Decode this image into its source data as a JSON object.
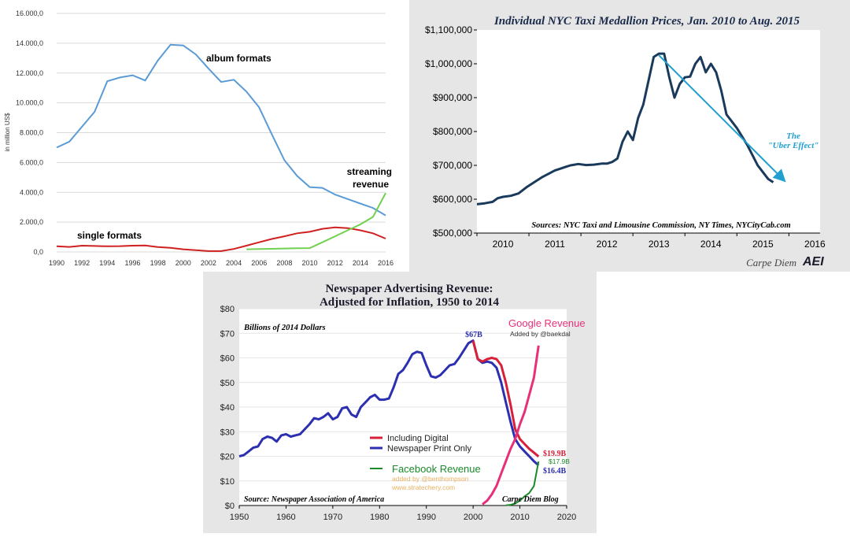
{
  "chart_data": [
    {
      "type": "line",
      "ylabel": "in million US$",
      "ylim": [
        0,
        16000
      ],
      "yticks": [
        "0,0",
        "2.000,0",
        "4.000,0",
        "6.000,0",
        "8.000,0",
        "10.000,0",
        "12.000,0",
        "14.000,0",
        "16.000,0"
      ],
      "xlim": [
        1990,
        2016
      ],
      "xticks": [
        "1990",
        "1992",
        "1994",
        "1996",
        "1998",
        "2000",
        "2002",
        "2004",
        "2006",
        "2008",
        "2010",
        "2012",
        "2014",
        "2016"
      ],
      "annotations": {
        "album": "album formats",
        "single": "single formats",
        "streaming1": "streaming",
        "streaming2": "revenue"
      },
      "series": [
        {
          "name": "album formats",
          "color": "#5b9bd5",
          "x": [
            1990,
            1991,
            1992,
            1993,
            1994,
            1995,
            1996,
            1997,
            1998,
            1999,
            2000,
            2001,
            2002,
            2003,
            2004,
            2005,
            2006,
            2007,
            2008,
            2009,
            2010,
            2011,
            2012,
            2013,
            2014,
            2015,
            2016
          ],
          "values": [
            7000,
            7400,
            8400,
            9400,
            11450,
            11700,
            11850,
            11500,
            12850,
            13900,
            13850,
            13250,
            12300,
            11400,
            11550,
            10750,
            9700,
            7900,
            6150,
            5100,
            4350,
            4300,
            3850,
            3550,
            3250,
            2950,
            2450
          ]
        },
        {
          "name": "single formats",
          "color": "#d02020",
          "x": [
            1990,
            1991,
            1992,
            1993,
            1994,
            1995,
            1996,
            1997,
            1998,
            1999,
            2000,
            2001,
            2002,
            2003,
            2004,
            2005,
            2006,
            2007,
            2008,
            2009,
            2010,
            2011,
            2012,
            2013,
            2014,
            2015,
            2016
          ],
          "values": [
            380,
            340,
            420,
            400,
            380,
            390,
            420,
            440,
            330,
            280,
            180,
            120,
            60,
            60,
            200,
            420,
            650,
            870,
            1050,
            1250,
            1350,
            1550,
            1650,
            1600,
            1450,
            1250,
            900
          ]
        },
        {
          "name": "streaming revenue",
          "color": "#70d050",
          "x": [
            2005,
            2006,
            2007,
            2008,
            2009,
            2010,
            2011,
            2012,
            2013,
            2014,
            2015,
            2016
          ],
          "values": [
            180,
            200,
            210,
            230,
            250,
            260,
            650,
            1050,
            1450,
            1850,
            2350,
            3950
          ]
        }
      ]
    },
    {
      "type": "line",
      "title": "Individual NYC Taxi Medallion Prices, Jan. 2010 to Aug. 2015",
      "ylim": [
        500000,
        1100000
      ],
      "yticks": [
        "$500,000",
        "$600,000",
        "$700,000",
        "$800,000",
        "$900,000",
        "$1,000,000",
        "$1,100,000"
      ],
      "xlim": [
        2009.5,
        2016.1
      ],
      "xticks": [
        "2010",
        "2011",
        "2012",
        "2013",
        "2014",
        "2015",
        "2016"
      ],
      "source": "Sources: NYC Taxi and Limousine Commission, NY Times, NYCityCab.com",
      "trend_label1": "The",
      "trend_label2": "\"Uber Effect\"",
      "trend": {
        "x": [
          2013.0,
          2015.4
        ],
        "values": [
          1025000,
          657000
        ]
      },
      "brand": "Carpe Diem",
      "logo": "AEI",
      "series": [
        {
          "name": "medallion price",
          "color": "#1a3a5c",
          "x": [
            2009.5,
            2009.65,
            2009.8,
            2009.9,
            2010.0,
            2010.15,
            2010.3,
            2010.45,
            2010.6,
            2010.75,
            2010.9,
            2011.0,
            2011.1,
            2011.2,
            2011.3,
            2011.45,
            2011.6,
            2011.75,
            2011.9,
            2012.0,
            2012.1,
            2012.2,
            2012.3,
            2012.4,
            2012.5,
            2012.6,
            2012.7,
            2012.8,
            2012.9,
            2013.0,
            2013.1,
            2013.2,
            2013.3,
            2013.4,
            2013.5,
            2013.6,
            2013.7,
            2013.8,
            2013.9,
            2014.0,
            2014.1,
            2014.2,
            2014.3,
            2014.4,
            2014.5,
            2014.6,
            2014.7,
            2014.8,
            2014.9,
            2015.0,
            2015.1,
            2015.2
          ],
          "values": [
            585000,
            588000,
            592000,
            603000,
            607000,
            610000,
            617000,
            635000,
            650000,
            665000,
            677000,
            685000,
            690000,
            695000,
            700000,
            704000,
            701000,
            702000,
            705000,
            705000,
            710000,
            720000,
            770000,
            800000,
            775000,
            840000,
            880000,
            950000,
            1020000,
            1030000,
            1030000,
            960000,
            900000,
            940000,
            960000,
            962000,
            1000000,
            1020000,
            975000,
            1000000,
            975000,
            920000,
            850000,
            830000,
            810000,
            785000,
            760000,
            730000,
            700000,
            680000,
            660000,
            650000
          ]
        }
      ]
    },
    {
      "type": "line",
      "title1": "Newspaper Advertising Revenue:",
      "title2": "Adjusted for Inflation, 1950 to 2014",
      "units": "Billions of 2014 Dollars",
      "ylim": [
        0,
        80
      ],
      "yticks": [
        "$0",
        "$10",
        "$20",
        "$30",
        "$40",
        "$50",
        "$60",
        "$70",
        "$80"
      ],
      "xlim": [
        1950,
        2020
      ],
      "xticks": [
        "1950",
        "1960",
        "1970",
        "1980",
        "1990",
        "2000",
        "2010",
        "2020"
      ],
      "source": "Source: Newspaper Association of America",
      "blog": "Carpe Diem Blog",
      "labels": {
        "peak": "$67B",
        "digital_end": "$19.9B",
        "print_end": "$16.4B",
        "facebook_end": "$17.9B"
      },
      "google_label": "Google Revenue",
      "google_credit": "Added by @baekdal",
      "facebook_label": "Facebook Revenue",
      "facebook_credit1": "added by @benthompson",
      "facebook_credit2": "www.stratechery.com",
      "legend": [
        "Including Digital",
        "Newspaper Print Only"
      ],
      "series": [
        {
          "name": "Newspaper Print Only",
          "color": "#2b2fb0",
          "x": [
            1950,
            1951,
            1952,
            1953,
            1954,
            1955,
            1956,
            1957,
            1958,
            1959,
            1960,
            1961,
            1962,
            1963,
            1964,
            1965,
            1966,
            1967,
            1968,
            1969,
            1970,
            1971,
            1972,
            1973,
            1974,
            1975,
            1976,
            1977,
            1978,
            1979,
            1980,
            1981,
            1982,
            1983,
            1984,
            1985,
            1986,
            1987,
            1988,
            1989,
            1990,
            1991,
            1992,
            1993,
            1994,
            1995,
            1996,
            1997,
            1998,
            1999,
            2000,
            2001,
            2002,
            2003,
            2004,
            2005,
            2006,
            2007,
            2008,
            2009,
            2010,
            2011,
            2012,
            2013,
            2014
          ],
          "values": [
            20,
            20.5,
            22,
            23.5,
            24,
            27,
            28,
            27.5,
            26,
            28.5,
            29,
            28,
            28.5,
            29,
            31,
            33,
            35.5,
            35,
            36,
            37.5,
            35,
            36,
            39.5,
            40,
            37,
            36,
            40,
            42,
            44,
            45,
            43,
            43,
            43.5,
            48,
            53.5,
            55,
            58,
            61.5,
            62.5,
            62,
            57,
            52.5,
            52,
            53,
            55,
            57,
            57.5,
            60,
            63,
            66,
            67,
            59.5,
            58,
            58.5,
            58,
            56,
            50,
            42,
            34,
            27,
            24,
            22,
            20,
            18,
            16.4
          ]
        },
        {
          "name": "Including Digital",
          "color": "#d8203a",
          "x": [
            2000,
            2001,
            2002,
            2003,
            2004,
            2005,
            2006,
            2007,
            2008,
            2009,
            2010,
            2011,
            2012,
            2013,
            2014
          ],
          "values": [
            67,
            59.5,
            58.5,
            59.5,
            60,
            59.5,
            57,
            50,
            41,
            31,
            27,
            25,
            23,
            21.5,
            19.9
          ]
        },
        {
          "name": "Google Revenue",
          "color": "#e8307a",
          "x": [
            2002,
            2003,
            2004,
            2005,
            2006,
            2007,
            2008,
            2009,
            2010,
            2011,
            2012,
            2013,
            2014
          ],
          "values": [
            0.5,
            2,
            4.5,
            8,
            13,
            18,
            23,
            27,
            33,
            38,
            45,
            52,
            65
          ]
        },
        {
          "name": "Facebook Revenue",
          "color": "#1a8a2a",
          "x": [
            2007,
            2008,
            2009,
            2010,
            2011,
            2012,
            2013,
            2014
          ],
          "values": [
            0.1,
            0.3,
            0.8,
            2,
            3.7,
            5.1,
            7.9,
            17.9
          ]
        }
      ]
    }
  ]
}
